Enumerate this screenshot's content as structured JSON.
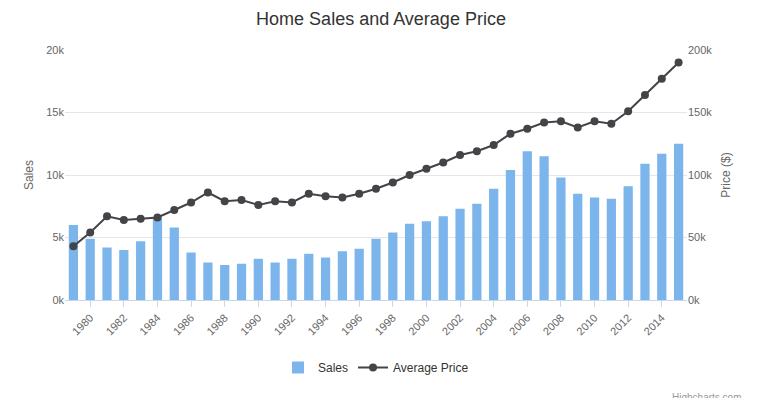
{
  "chart_data": {
    "type": "bar",
    "title": "Home Sales and Average Price",
    "x_label": "",
    "y_label": "Sales",
    "y2_label": "Price ($)",
    "annotations": [
      "Highcharts.com"
    ],
    "x": [
      1979,
      1980,
      1981,
      1982,
      1983,
      1984,
      1985,
      1986,
      1987,
      1988,
      1989,
      1990,
      1991,
      1992,
      1993,
      1994,
      1995,
      1996,
      1997,
      1998,
      1999,
      2000,
      2001,
      2002,
      2003,
      2004,
      2005,
      2006,
      2007,
      2008,
      2009,
      2010,
      2011,
      2012,
      2013,
      2014,
      2015
    ],
    "series": [
      {
        "name": "Sales",
        "type": "bar",
        "color": "#7cb5ec",
        "values": [
          6000,
          4900,
          4200,
          4000,
          4700,
          6600,
          5800,
          3800,
          3000,
          2800,
          2900,
          3300,
          3000,
          3300,
          3700,
          3400,
          3900,
          4100,
          4900,
          5400,
          6100,
          6300,
          6700,
          7300,
          7700,
          8900,
          10400,
          11900,
          11500,
          9800,
          8500,
          8200,
          8100,
          9100,
          10900,
          11700,
          12500
        ]
      },
      {
        "name": "Average Price",
        "type": "line",
        "axis": "y2",
        "color": "#434348",
        "marker": "circle",
        "line_style": "solid",
        "values": [
          43000,
          54000,
          67000,
          64000,
          65000,
          66000,
          72000,
          78000,
          86000,
          79000,
          80000,
          76000,
          79000,
          78000,
          85000,
          83000,
          82000,
          85000,
          89000,
          94000,
          100000,
          105000,
          110000,
          116000,
          119000,
          124000,
          133000,
          137000,
          142000,
          143000,
          138000,
          143000,
          141000,
          151000,
          164000,
          177000,
          190000
        ]
      }
    ],
    "xlim": [
      1978.5,
      2015.5
    ],
    "xticks": [
      1980,
      1982,
      1984,
      1986,
      1988,
      1990,
      1992,
      1994,
      1996,
      1998,
      2000,
      2002,
      2004,
      2006,
      2008,
      2010,
      2012,
      2014
    ],
    "ylim": [
      0,
      20000
    ],
    "yticks": [
      {
        "value": 0,
        "label": "0k"
      },
      {
        "value": 5000,
        "label": "5k"
      },
      {
        "value": 10000,
        "label": "10k"
      },
      {
        "value": 15000,
        "label": "15k"
      },
      {
        "value": 20000,
        "label": "20k"
      }
    ],
    "y2lim": [
      0,
      200000
    ],
    "y2ticks": [
      {
        "value": 0,
        "label": "0k"
      },
      {
        "value": 50000,
        "label": "50k"
      },
      {
        "value": 100000,
        "label": "100k"
      },
      {
        "value": 150000,
        "label": "150k"
      },
      {
        "value": 200000,
        "label": "200k"
      }
    ],
    "grid": true,
    "legend": "bottom"
  }
}
